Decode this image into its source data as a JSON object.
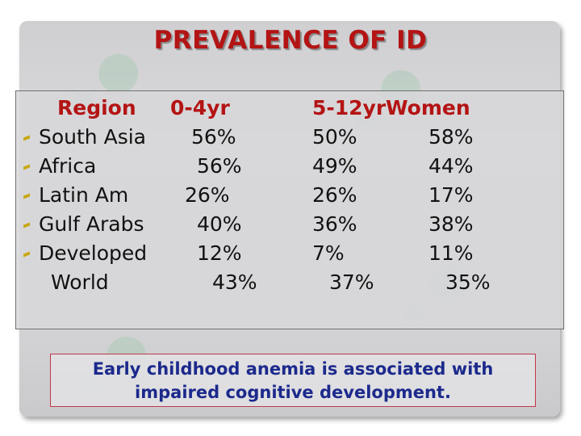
{
  "title": "PREVALENCE OF ID",
  "table": {
    "headers": [
      "Region",
      "0-4yr",
      "5-12yr",
      "Women"
    ],
    "rows": [
      {
        "region": "South Asia",
        "age_0_4": "56%",
        "age_5_12": "50%",
        "women": "58%",
        "bullet": true
      },
      {
        "region": "Africa",
        "age_0_4": "56%",
        "age_5_12": "49%",
        "women": "44%",
        "bullet": true
      },
      {
        "region": "Latin Am",
        "age_0_4": "26%",
        "age_5_12": "26%",
        "women": "17%",
        "bullet": true
      },
      {
        "region": "Gulf Arabs",
        "age_0_4": "40%",
        "age_5_12": "36%",
        "women": "38%",
        "bullet": true
      },
      {
        "region": "Developed",
        "age_0_4": "12%",
        "age_5_12": "7%",
        "women": "11%",
        "bullet": true
      },
      {
        "region": "World",
        "age_0_4": "43%",
        "age_5_12": "37%",
        "women": "35%",
        "bullet": false
      }
    ]
  },
  "note": {
    "line1": "Early childhood anemia is associated with",
    "line2": "impaired cognitive development."
  },
  "colors": {
    "title": "#b41414",
    "header": "#b41414",
    "note_text": "#1c2a8c",
    "note_border": "#c0384a",
    "bullet": "#c8a814"
  }
}
